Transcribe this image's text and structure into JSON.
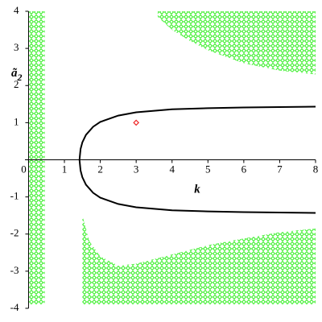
{
  "chart_data": {
    "type": "implicit-region",
    "xlabel": "k",
    "ylabel": {
      "base": "ã",
      "sub": "2"
    },
    "xlim": [
      -0.1,
      8
    ],
    "ylim": [
      -4,
      4
    ],
    "xticks": [
      0,
      1,
      2,
      3,
      4,
      5,
      6,
      7,
      8
    ],
    "yticks": [
      -4,
      -3,
      -2,
      -1,
      1,
      2,
      3,
      4
    ],
    "region_color": "#33ee22",
    "regions": [
      {
        "x": [
          0,
          0.45
        ],
        "upper": [
          4,
          4
        ],
        "lower": [
          -3.9,
          -3.9
        ]
      },
      {
        "x": [
          3.6,
          4,
          4.5,
          5,
          6,
          7,
          8
        ],
        "upper": [
          4,
          4,
          4,
          4,
          4,
          4,
          4
        ],
        "lower": [
          3.85,
          3.5,
          3.2,
          2.95,
          2.6,
          2.4,
          2.3
        ]
      },
      {
        "x": [
          1.5,
          1.7,
          2,
          2.5,
          3,
          4,
          5,
          6,
          7,
          8
        ],
        "upper": [
          -1.5,
          -2.2,
          -2.6,
          -2.85,
          -2.8,
          -2.55,
          -2.3,
          -2.12,
          -1.95,
          -1.85
        ],
        "lower": [
          -3.9,
          -3.9,
          -3.9,
          -3.9,
          -3.9,
          -3.9,
          -3.9,
          -3.9,
          -3.9,
          -3.9
        ]
      }
    ],
    "curves": [
      {
        "color": "#000000",
        "x": [
          1.42,
          1.45,
          1.5,
          1.6,
          1.8,
          2,
          2.5,
          3,
          4,
          5,
          6,
          7,
          8
        ],
        "values": [
          0,
          0.29,
          0.47,
          0.67,
          0.89,
          1.02,
          1.19,
          1.28,
          1.36,
          1.39,
          1.41,
          1.42,
          1.43
        ]
      },
      {
        "color": "#000000",
        "x": [
          1.42,
          1.45,
          1.5,
          1.6,
          1.8,
          2,
          2.5,
          3,
          4,
          5,
          6,
          7,
          8
        ],
        "values": [
          0,
          -0.29,
          -0.47,
          -0.67,
          -0.89,
          -1.02,
          -1.19,
          -1.28,
          -1.36,
          -1.39,
          -1.41,
          -1.42,
          -1.43
        ]
      }
    ],
    "point": {
      "x": 3,
      "y": 1,
      "color": "#ee2222"
    }
  }
}
